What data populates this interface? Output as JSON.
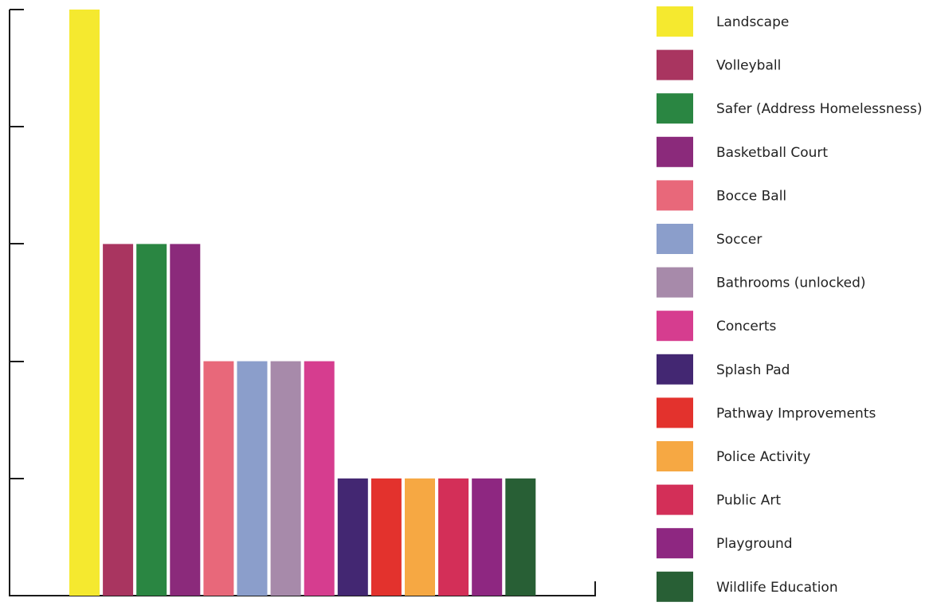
{
  "chart_data": {
    "type": "bar",
    "title": "",
    "xlabel": "",
    "ylabel": "",
    "ylim": [
      0,
      5
    ],
    "y_ticks": [
      1,
      2,
      3,
      4,
      5
    ],
    "grid": false,
    "legend_position": "right",
    "categories": [
      "Landscape",
      "Volleyball",
      "Safer (Address Homelessness)",
      "Basketball Court",
      "Bocce Ball",
      "Soccer",
      "Bathrooms (unlocked)",
      "Concerts",
      "Splash Pad",
      "Pathway Improvements",
      "Police Activity",
      "Public Art",
      "Playground",
      "Wildlife Education"
    ],
    "values": [
      5,
      3,
      3,
      3,
      2,
      2,
      2,
      2,
      1,
      1,
      1,
      1,
      1,
      1
    ],
    "colors": [
      "#f5e92f",
      "#a93560",
      "#2a8642",
      "#8b2a7b",
      "#e8687a",
      "#8b9ecb",
      "#a78aaa",
      "#d63d8f",
      "#432772",
      "#e3322d",
      "#f6a843",
      "#d32f58",
      "#8e2781",
      "#285f35"
    ]
  }
}
